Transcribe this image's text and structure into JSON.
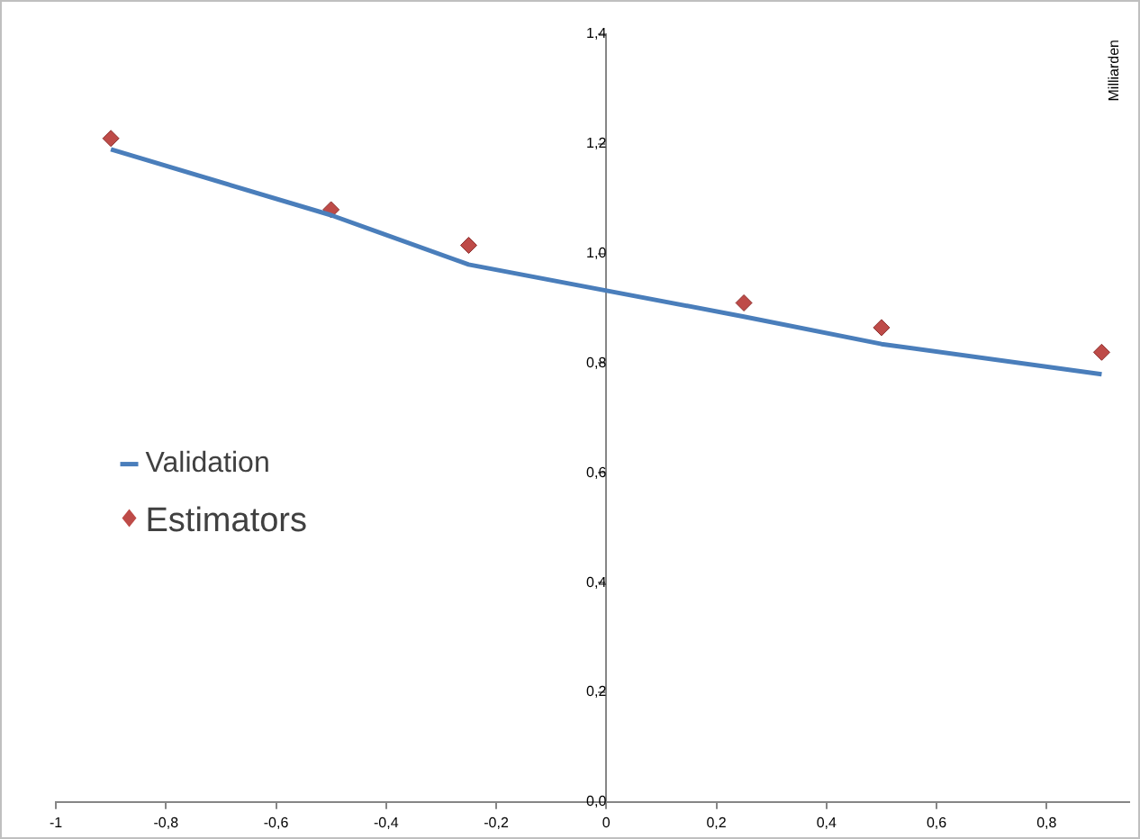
{
  "chart_data": {
    "type": "line",
    "ylabel": "Milliarden",
    "series": [
      {
        "name": "Validation",
        "color": "#4a7ebb",
        "x": [
          -0.9,
          -0.5,
          -0.25,
          0.25,
          0.5,
          0.9
        ],
        "values": [
          1.19,
          1.07,
          0.98,
          0.885,
          0.835,
          0.78
        ],
        "marker": "none"
      },
      {
        "name": "Estimators",
        "type": "scatter",
        "color": "#be4b48",
        "x": [
          -0.9,
          -0.5,
          -0.25,
          0.25,
          0.5,
          0.9
        ],
        "values": [
          1.21,
          1.08,
          1.015,
          0.91,
          0.865,
          0.82
        ],
        "marker": "diamond"
      }
    ],
    "xlim": [
      -1,
      0.95
    ],
    "xticks": [
      -1,
      {
        "value": -0.8,
        "label": "-0,8"
      },
      {
        "value": -0.6,
        "label": "-0,6"
      },
      {
        "value": -0.4,
        "label": "-0,4"
      },
      {
        "value": -0.2,
        "label": "-0,2"
      },
      0,
      {
        "value": 0.2,
        "label": "0,2"
      },
      {
        "value": 0.4,
        "label": "0,4"
      },
      {
        "value": 0.6,
        "label": "0,6"
      },
      {
        "value": 0.8,
        "label": "0,8"
      }
    ],
    "ylim": [
      0,
      1.4
    ],
    "yticks": [
      {
        "value": 0,
        "label": "0,0"
      },
      {
        "value": 0.2,
        "label": "0,2"
      },
      {
        "value": 0.4,
        "label": "0,4"
      },
      {
        "value": 0.6,
        "label": "0,6"
      },
      {
        "value": 0.8,
        "label": "0,8"
      },
      {
        "value": 1,
        "label": "1,0"
      },
      {
        "value": 1.2,
        "label": "1,2"
      },
      {
        "value": 1.4,
        "label": "1,4"
      }
    ],
    "grid": false,
    "legend": "left"
  }
}
